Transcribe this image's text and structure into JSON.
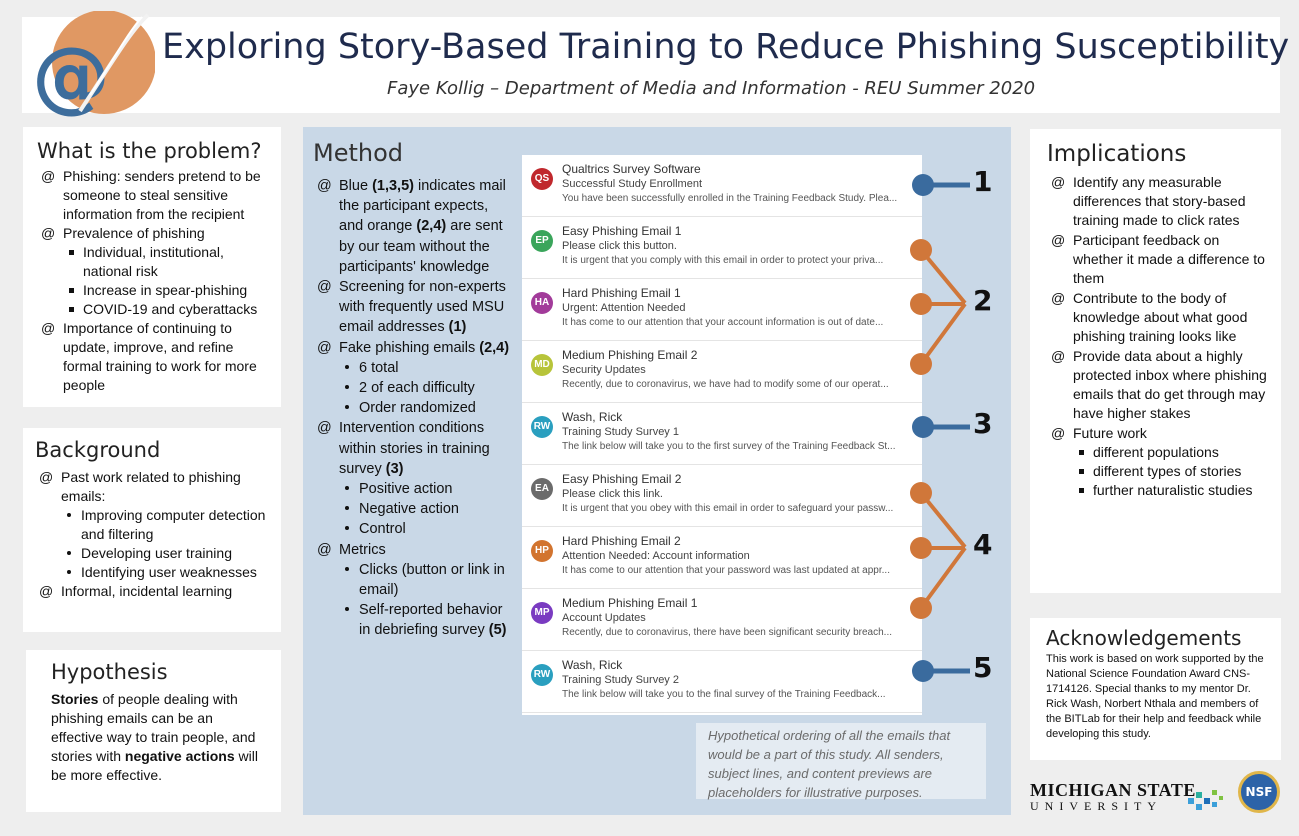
{
  "header": {
    "title": "Exploring Story-Based Training to Reduce Phishing Susceptibility",
    "subtitle": "Faye Kollig – Department of Media and Information - REU Summer 2020"
  },
  "problem": {
    "heading": "What is the problem?",
    "b1": "Phishing: senders pretend to be someone to steal sensitive information from the recipient",
    "b2": "Prevalence of phishing",
    "sub": [
      "Individual, institutional, national risk",
      "Increase in spear-phishing",
      "COVID-19 and cyberattacks"
    ],
    "b3": "Importance of continuing to update, improve, and refine formal training to work for more people"
  },
  "background": {
    "heading": "Background",
    "b1": "Past work related to phishing emails:",
    "sub": [
      "Improving computer detection and filtering",
      "Developing user training",
      "Identifying user weaknesses"
    ],
    "b2": "Informal, incidental learning"
  },
  "hypothesis": {
    "heading": "Hypothesis",
    "t1": "Stories",
    "t2": " of people dealing with phishing emails can be an effective way to train people, and stories with ",
    "t3": "negative actions",
    "t4": " will be more effective."
  },
  "method": {
    "heading": "Method",
    "b1a": "Blue ",
    "b1b": "(1,3,5)",
    "b1c": " indicates mail the participant expects, and orange ",
    "b1d": "(2,4)",
    "b1e": " are sent by our team without the participants' knowledge",
    "b2a": "Screening for non-experts with frequently used MSU email addresses ",
    "b2b": "(1)",
    "b3a": "Fake phishing emails ",
    "b3b": "(2,4)",
    "b3sub": [
      "6 total",
      "2 of each difficulty",
      "Order randomized"
    ],
    "b4a": "Intervention conditions within stories in training survey ",
    "b4b": "(3)",
    "b4sub": [
      "Positive action",
      "Negative action",
      "Control"
    ],
    "b5": "Metrics",
    "b5s1": "Clicks (button or link in email)",
    "b5s2a": "Self-reported behavior in debriefing survey ",
    "b5s2b": "(5)"
  },
  "emails": [
    {
      "initials": "QS",
      "color": "#c0282d",
      "from": "Qualtrics Survey Software",
      "subject": "Successful Study Enrollment",
      "preview": "You have been successfully enrolled in the Training Feedback Study. Plea..."
    },
    {
      "initials": "EP",
      "color": "#3aa55b",
      "from": "Easy Phishing Email 1",
      "subject": "Please click this button.",
      "preview": "It is urgent that you comply with this email in order to protect your priva..."
    },
    {
      "initials": "HA",
      "color": "#a23b9a",
      "from": "Hard Phishing Email 1",
      "subject": "Urgent: Attention Needed",
      "preview": "It has come to our attention that your account information is out of date..."
    },
    {
      "initials": "MD",
      "color": "#b7c43a",
      "from": "Medium Phishing Email 2",
      "subject": "Security Updates",
      "preview": "Recently, due to coronavirus, we have had to modify some of our operat..."
    },
    {
      "initials": "RW",
      "color": "#2a9fbf",
      "from": "Wash, Rick",
      "subject": "Training Study Survey 1",
      "preview": "The link below will take you to the first survey of the Training Feedback St..."
    },
    {
      "initials": "EA",
      "color": "#6b6b6b",
      "from": "Easy Phishing Email 2",
      "subject": "Please click this link.",
      "preview": "It is urgent that you obey with this email in order to safeguard your passw..."
    },
    {
      "initials": "HP",
      "color": "#d2742f",
      "from": "Hard Phishing Email 2",
      "subject": "Attention Needed: Account information",
      "preview": "It has come to our attention that your password was last updated at appr..."
    },
    {
      "initials": "MP",
      "color": "#7a3bc1",
      "from": "Medium Phishing Email 1",
      "subject": "Account Updates",
      "preview": "Recently, due to coronavirus, there have been significant security breach..."
    },
    {
      "initials": "RW",
      "color": "#2a9fbf",
      "from": "Wash, Rick",
      "subject": "Training Study Survey 2",
      "preview": "The link below will take you to the final survey of the Training Feedback..."
    }
  ],
  "markers": {
    "n1": "1",
    "n2": "2",
    "n3": "3",
    "n4": "4",
    "n5": "5",
    "blue": "#3a6b9e",
    "orange": "#d0773a"
  },
  "caption": "Hypothetical ordering of all the emails that would be a part of this study. All senders, subject lines, and content previews are placeholders for illustrative purposes.",
  "implications": {
    "heading": "Implications",
    "items": [
      "Identify any measurable differences that story-based training made to click rates",
      "Participant feedback on whether it made a difference to them",
      "Contribute to the body of knowledge about what good phishing training looks like",
      "Provide data about a highly protected inbox where phishing emails that do get through may have higher stakes"
    ],
    "future": "Future work",
    "futureSub": [
      "different populations",
      "different types of stories",
      "further naturalistic studies"
    ]
  },
  "ack": {
    "heading": "Acknowledgements",
    "body": "This work is based on work supported by the National Science Foundation Award CNS-1714126. Special thanks to my mentor Dr. Rick Wash, Norbert Nthala and members of the BITLab for their help and feedback while developing this study."
  },
  "logos": {
    "msu1": "MICHIGAN STATE",
    "msu2": "UNIVERSITY",
    "nsf": "NSF"
  },
  "colors": {
    "method_bg": "#c9d8e7",
    "logo_orange": "#e09863",
    "logo_blue": "#3d6d9c"
  }
}
